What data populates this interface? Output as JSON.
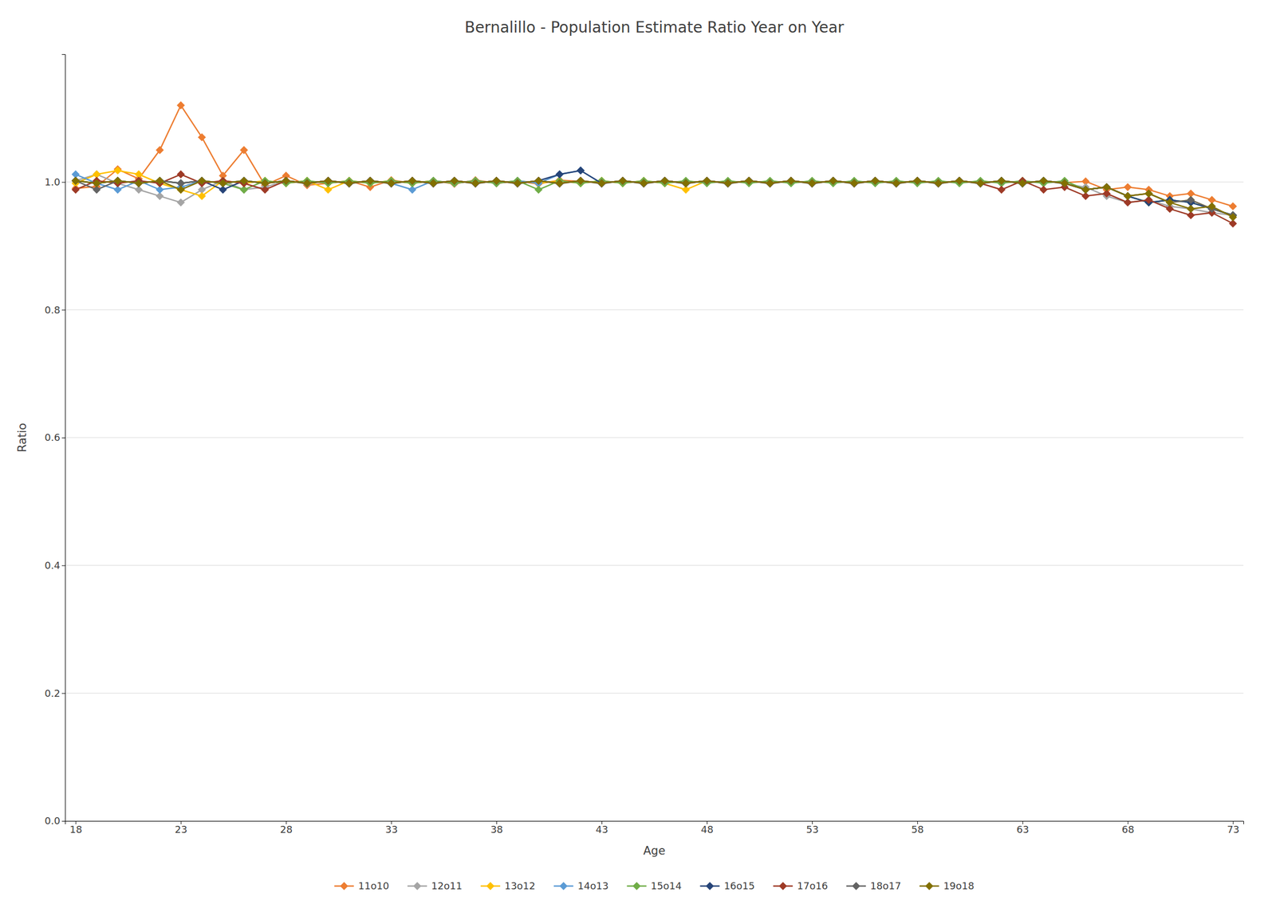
{
  "chart_data": {
    "type": "line",
    "title": "Bernalillo - Population Estimate Ratio Year on Year",
    "xlabel": "Age",
    "ylabel": "Ratio",
    "x": [
      18,
      19,
      20,
      21,
      22,
      23,
      24,
      25,
      26,
      27,
      28,
      29,
      30,
      31,
      32,
      33,
      34,
      35,
      36,
      37,
      38,
      39,
      40,
      41,
      42,
      43,
      44,
      45,
      46,
      47,
      48,
      49,
      50,
      51,
      52,
      53,
      54,
      55,
      56,
      57,
      58,
      59,
      60,
      61,
      62,
      63,
      64,
      65,
      66,
      67,
      68,
      69,
      70,
      71,
      72,
      73
    ],
    "xlim": [
      17.5,
      73.5
    ],
    "xticks": [
      18,
      23,
      28,
      33,
      38,
      43,
      48,
      53,
      58,
      63,
      68,
      73
    ],
    "ylim": [
      0,
      1.2
    ],
    "yticks": [
      {
        "value": 0,
        "label": "0.0"
      },
      0.2,
      0.4,
      0.6,
      0.8,
      {
        "value": 1,
        "label": "1.0"
      }
    ],
    "grid": true,
    "legend": "bottom",
    "marker": "diamond",
    "series": [
      {
        "name": "11o10",
        "color": "#ED7D31",
        "values": [
          0.99,
          0.993,
          1.02,
          1.005,
          1.05,
          1.12,
          1.07,
          1.01,
          1.05,
          0.995,
          1.01,
          0.995,
          0.998,
          1.002,
          0.992,
          1.003,
          0.998,
          1.002,
          0.997,
          1.003,
          0.998,
          1.001,
          0.997,
          1.003,
          1.001,
          0.999,
          1.001,
          0.999,
          1.001,
          0.999,
          1.001,
          0.999,
          1.001,
          0.999,
          1.001,
          0.999,
          1.001,
          0.999,
          1.001,
          0.999,
          1.001,
          0.999,
          1.001,
          0.999,
          1.001,
          0.999,
          1.001,
          0.999,
          1.001,
          0.988,
          0.992,
          0.988,
          0.978,
          0.982,
          0.972,
          0.962
        ]
      },
      {
        "name": "12o11",
        "color": "#A5A5A5",
        "values": [
          1.002,
          1.012,
          0.998,
          0.988,
          0.978,
          0.968,
          0.988,
          1.002,
          0.988,
          0.992,
          1.002,
          0.997,
          1.002,
          0.997,
          1.002,
          0.997,
          1.002,
          0.997,
          1.002,
          0.997,
          1.002,
          0.997,
          1.002,
          0.997,
          1.002,
          0.997,
          1.002,
          0.997,
          1.002,
          0.997,
          1.002,
          0.997,
          1.002,
          0.997,
          1.002,
          0.997,
          1.002,
          0.997,
          1.002,
          0.997,
          1.002,
          0.997,
          1.002,
          0.997,
          1.002,
          0.997,
          1.002,
          0.997,
          0.992,
          0.978,
          0.968,
          0.972,
          0.962,
          0.958,
          0.952,
          0.948
        ]
      },
      {
        "name": "13o12",
        "color": "#FFC000",
        "values": [
          0.998,
          1.012,
          1.018,
          1.012,
          0.998,
          0.988,
          0.978,
          1.002,
          0.998,
          1.002,
          0.998,
          1.002,
          0.988,
          1.002,
          0.998,
          1.002,
          0.998,
          1.002,
          0.998,
          1.002,
          0.998,
          1.002,
          0.998,
          1.002,
          0.998,
          1.002,
          0.998,
          1.002,
          0.998,
          0.988,
          1.002,
          0.998,
          1.002,
          0.998,
          1.002,
          0.998,
          1.002,
          0.998,
          1.002,
          0.998,
          1.002,
          0.998,
          1.002,
          0.998,
          1.002,
          0.998,
          1.002,
          0.998,
          0.988,
          0.992,
          0.978,
          0.982,
          0.968,
          0.972,
          0.958,
          0.948
        ]
      },
      {
        "name": "14o13",
        "color": "#5B9BD5",
        "values": [
          1.012,
          0.998,
          0.988,
          1.002,
          0.988,
          0.992,
          1.002,
          0.998,
          1.002,
          0.998,
          1.002,
          0.998,
          1.002,
          0.998,
          1.002,
          0.998,
          0.988,
          1.002,
          0.998,
          1.002,
          0.998,
          1.002,
          0.998,
          1.012,
          1.018,
          0.998,
          1.002,
          0.998,
          1.002,
          0.998,
          1.002,
          0.998,
          1.002,
          0.998,
          1.002,
          0.998,
          1.002,
          0.998,
          1.002,
          0.998,
          1.002,
          0.998,
          1.002,
          0.998,
          1.002,
          0.998,
          1.002,
          0.998,
          0.988,
          0.992,
          0.978,
          0.968,
          0.972,
          0.968,
          0.958,
          0.948
        ]
      },
      {
        "name": "15o14",
        "color": "#70AD47",
        "values": [
          1.002,
          0.998,
          1.002,
          0.998,
          1.002,
          0.998,
          1.002,
          0.998,
          0.988,
          1.002,
          0.998,
          1.002,
          0.998,
          1.002,
          0.998,
          1.002,
          0.998,
          1.002,
          0.998,
          1.002,
          0.998,
          1.002,
          0.988,
          1.002,
          0.998,
          1.002,
          0.998,
          1.002,
          0.998,
          1.002,
          0.998,
          1.002,
          0.998,
          1.002,
          0.998,
          1.002,
          0.998,
          1.002,
          0.998,
          1.002,
          0.998,
          1.002,
          0.998,
          1.002,
          0.998,
          1.002,
          0.998,
          1.002,
          0.988,
          0.992,
          0.978,
          0.968,
          0.972,
          0.968,
          0.958,
          0.948
        ]
      },
      {
        "name": "16o15",
        "color": "#264478",
        "values": [
          1.002,
          0.998,
          1.002,
          0.998,
          1.002,
          0.998,
          1.002,
          0.988,
          1.002,
          0.998,
          1.002,
          0.998,
          1.002,
          0.998,
          1.002,
          0.998,
          1.002,
          0.998,
          1.002,
          0.998,
          1.002,
          0.998,
          1.002,
          1.012,
          1.018,
          0.998,
          1.002,
          0.998,
          1.002,
          0.998,
          1.002,
          0.998,
          1.002,
          0.998,
          1.002,
          0.998,
          1.002,
          0.998,
          1.002,
          0.998,
          1.002,
          0.998,
          1.002,
          0.998,
          1.002,
          0.998,
          1.002,
          0.998,
          0.988,
          0.992,
          0.978,
          0.968,
          0.972,
          0.968,
          0.958,
          0.948
        ]
      },
      {
        "name": "17o16",
        "color": "#9E3A26",
        "values": [
          0.988,
          1.002,
          0.998,
          1.002,
          0.998,
          1.012,
          0.998,
          1.002,
          0.998,
          0.988,
          1.002,
          0.998,
          1.002,
          0.998,
          1.002,
          0.998,
          1.002,
          0.998,
          1.002,
          0.998,
          1.002,
          0.998,
          1.002,
          0.998,
          1.002,
          0.998,
          1.002,
          0.998,
          1.002,
          0.998,
          1.002,
          0.998,
          1.002,
          0.998,
          1.002,
          0.998,
          1.002,
          0.998,
          1.002,
          0.998,
          1.002,
          0.998,
          1.002,
          0.998,
          0.988,
          1.002,
          0.988,
          0.992,
          0.978,
          0.982,
          0.968,
          0.972,
          0.958,
          0.948,
          0.952,
          0.935
        ]
      },
      {
        "name": "18o17",
        "color": "#636363",
        "values": [
          1.002,
          0.988,
          1.002,
          0.998,
          1.002,
          0.998,
          1.002,
          0.998,
          1.002,
          0.998,
          1.002,
          0.998,
          1.002,
          0.998,
          1.002,
          0.998,
          1.002,
          0.998,
          1.002,
          0.998,
          1.002,
          0.998,
          1.002,
          0.998,
          1.002,
          0.998,
          1.002,
          0.998,
          1.002,
          0.998,
          1.002,
          0.998,
          1.002,
          0.998,
          1.002,
          0.998,
          1.002,
          0.998,
          1.002,
          0.998,
          1.002,
          0.998,
          1.002,
          0.998,
          1.002,
          0.998,
          1.002,
          0.998,
          0.988,
          0.992,
          0.978,
          0.982,
          0.968,
          0.972,
          0.958,
          0.948
        ]
      },
      {
        "name": "19o18",
        "color": "#827000",
        "values": [
          1.002,
          0.998,
          1.002,
          0.998,
          1.002,
          0.988,
          1.002,
          0.998,
          1.002,
          0.998,
          1.002,
          0.998,
          1.002,
          0.998,
          1.002,
          0.998,
          1.002,
          0.998,
          1.002,
          0.998,
          1.002,
          0.998,
          1.002,
          0.998,
          1.002,
          0.998,
          1.002,
          0.998,
          1.002,
          0.998,
          1.002,
          0.998,
          1.002,
          0.998,
          1.002,
          0.998,
          1.002,
          0.998,
          1.002,
          0.998,
          1.002,
          0.998,
          1.002,
          0.998,
          1.002,
          0.998,
          1.002,
          0.998,
          0.988,
          0.992,
          0.978,
          0.982,
          0.968,
          0.958,
          0.962,
          0.945
        ]
      }
    ]
  }
}
